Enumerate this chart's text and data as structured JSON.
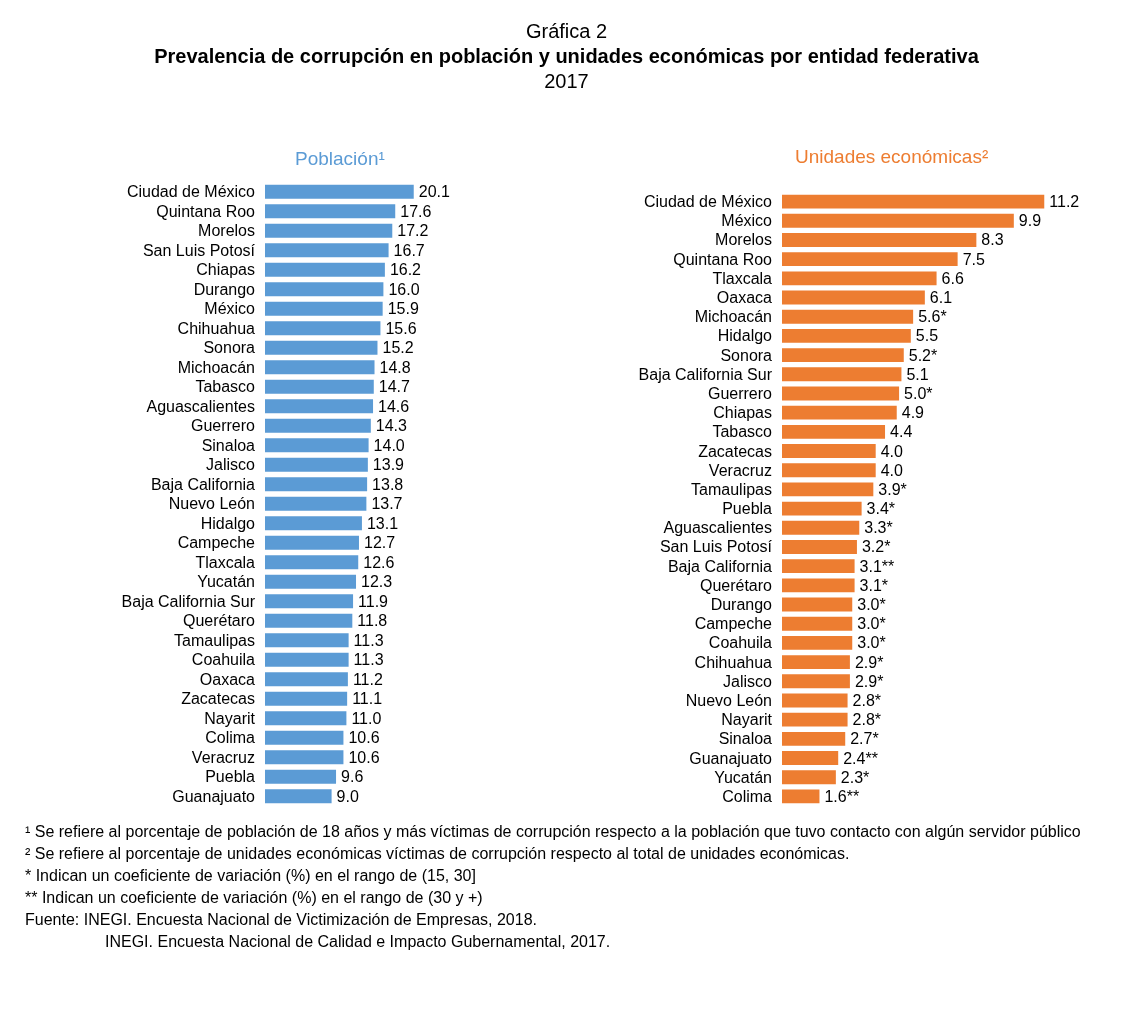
{
  "chart_data": [
    {
      "type": "other",
      "title": "Gráfica 2",
      "subtitle": "Prevalencia de corrupción en población y unidades económicas por entidad federativa",
      "annotations": [
        "2017"
      ]
    },
    {
      "type": "bar",
      "orientation": "horizontal",
      "title": "Población¹",
      "color": "#5b9bd5",
      "value_labels": [
        "20.1",
        "17.6",
        "17.2",
        "16.7",
        "16.2",
        "16.0",
        "15.9",
        "15.6",
        "15.2",
        "14.8",
        "14.7",
        "14.6",
        "14.3",
        "14.0",
        "13.9",
        "13.8",
        "13.7",
        "13.1",
        "12.7",
        "12.6",
        "12.3",
        "11.9",
        "11.8",
        "11.3",
        "11.3",
        "11.2",
        "11.1",
        "11.0",
        "10.6",
        "10.6",
        "9.6",
        "9.0"
      ],
      "categories": [
        "Ciudad de México",
        "Quintana Roo",
        "Morelos",
        "San Luis Potosí",
        "Chiapas",
        "Durango",
        "México",
        "Chihuahua",
        "Sonora",
        "Michoacán",
        "Tabasco",
        "Aguascalientes",
        "Guerrero",
        "Sinaloa",
        "Jalisco",
        "Baja California",
        "Nuevo León",
        "Hidalgo",
        "Campeche",
        "Tlaxcala",
        "Yucatán",
        "Baja California Sur",
        "Querétaro",
        "Tamaulipas",
        "Coahuila",
        "Oaxaca",
        "Zacatecas",
        "Nayarit",
        "Colima",
        "Veracruz",
        "Puebla",
        "Guanajuato"
      ],
      "values": [
        20.1,
        17.6,
        17.2,
        16.7,
        16.2,
        16.0,
        15.9,
        15.6,
        15.2,
        14.8,
        14.7,
        14.6,
        14.3,
        14.0,
        13.9,
        13.8,
        13.7,
        13.1,
        12.7,
        12.6,
        12.3,
        11.9,
        11.8,
        11.3,
        11.3,
        11.2,
        11.1,
        11.0,
        10.6,
        10.6,
        9.6,
        9.0
      ]
    },
    {
      "type": "bar",
      "orientation": "horizontal",
      "title": "Unidades económicas²",
      "color": "#ed7d31",
      "categories": [
        "Ciudad de México",
        "México",
        "Morelos",
        "Quintana Roo",
        "Tlaxcala",
        "Oaxaca",
        "Michoacán",
        "Hidalgo",
        "Sonora",
        "Baja California Sur",
        "Guerrero",
        "Chiapas",
        "Tabasco",
        "Zacatecas",
        "Veracruz",
        "Tamaulipas",
        "Puebla",
        "Aguascalientes",
        "San Luis Potosí",
        "Baja California",
        "Querétaro",
        "Durango",
        "Campeche",
        "Coahuila",
        "Chihuahua",
        "Jalisco",
        "Nuevo León",
        "Nayarit",
        "Sinaloa",
        "Guanajuato",
        "Yucatán",
        "Colima"
      ],
      "values": [
        11.2,
        9.9,
        8.3,
        7.5,
        6.6,
        6.1,
        5.6,
        5.5,
        5.2,
        5.1,
        5.0,
        4.9,
        4.4,
        4.0,
        4.0,
        3.9,
        3.4,
        3.3,
        3.2,
        3.1,
        3.1,
        3.0,
        3.0,
        3.0,
        2.9,
        2.9,
        2.8,
        2.8,
        2.7,
        2.4,
        2.3,
        1.6
      ],
      "value_labels": [
        "11.2",
        "9.9",
        "8.3",
        "7.5",
        "6.6",
        "6.1",
        "5.6*",
        "5.5",
        "5.2*",
        "5.1",
        "5.0*",
        "4.9",
        "4.4",
        "4.0",
        "4.0",
        "3.9*",
        "3.4*",
        "3.3*",
        "3.2*",
        "3.1**",
        "3.1*",
        "3.0*",
        "3.0*",
        "3.0*",
        "2.9*",
        "2.9*",
        "2.8*",
        "2.8*",
        "2.7*",
        "2.4**",
        "2.3*",
        "1.6**"
      ]
    },
    {
      "type": "other",
      "annotations": [
        "¹ Se refiere al porcentaje de población de 18 años y más víctimas de corrupción respecto a la población que tuvo contacto con algún servidor público",
        "² Se refiere al porcentaje de unidades económicas víctimas de corrupción respecto al total de unidades económicas.",
        "* Indican un coeficiente de variación (%) en el rango de (15, 30]",
        "** Indican un coeficiente de variación (%) en el rango de (30 y +)",
        "Fuente: INEGI. Encuesta Nacional de Victimización de Empresas, 2018.",
        "INEGI. Encuesta Nacional de Calidad e Impacto Gubernamental, 2017."
      ]
    }
  ]
}
